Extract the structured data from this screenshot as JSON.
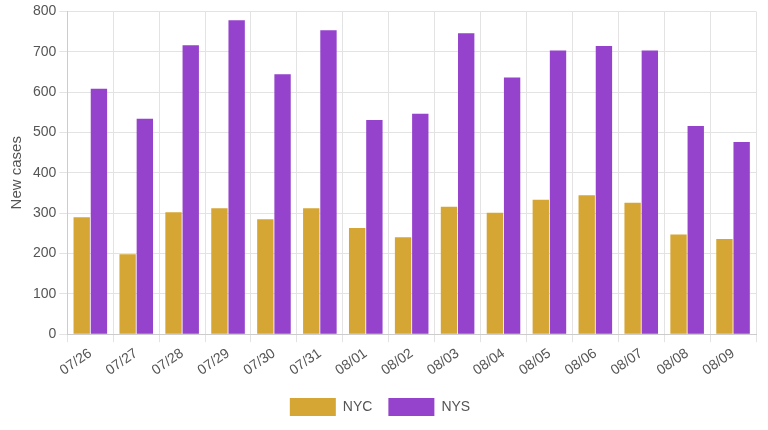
{
  "chart_data": {
    "type": "bar",
    "y_label": "New cases",
    "categories": [
      "07/26",
      "07/27",
      "07/28",
      "07/29",
      "07/30",
      "07/31",
      "08/01",
      "08/02",
      "08/03",
      "08/04",
      "08/05",
      "08/06",
      "08/07",
      "08/08",
      "08/09"
    ],
    "series": [
      {
        "name": "NYC",
        "color": "#d6a634",
        "values": [
          290,
          198,
          302,
          312,
          285,
          312,
          263,
          240,
          316,
          301,
          333,
          344,
          326,
          247,
          236
        ]
      },
      {
        "name": "NYS",
        "color": "#9542cc",
        "values": [
          608,
          534,
          716,
          778,
          644,
          753,
          531,
          546,
          746,
          636,
          703,
          714,
          703,
          516,
          476
        ]
      }
    ],
    "ylim": [
      0,
      800
    ],
    "yticks": [
      0,
      100,
      200,
      300,
      400,
      500,
      600,
      700,
      800
    ],
    "grid": true,
    "legend": "bottom"
  }
}
